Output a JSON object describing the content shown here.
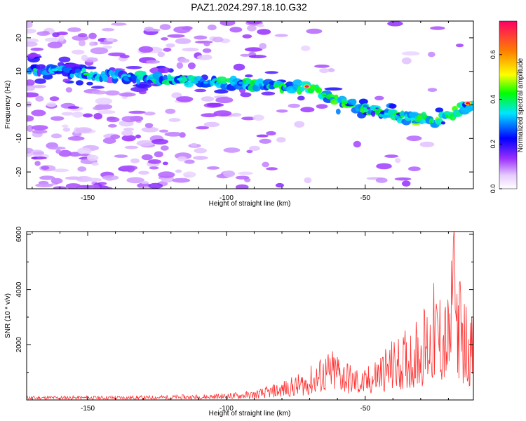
{
  "title": "PAZ1.2024.297.18.10.G32",
  "chart_data": [
    {
      "type": "heatmap",
      "title": "PAZ1.2024.297.18.10.G32",
      "xlabel": "Height of straight line (km)",
      "ylabel": "Frequency (Hz)",
      "xlim": [
        -172,
        -11
      ],
      "ylim": [
        -25,
        25
      ],
      "x_ticks": [
        -150,
        -100,
        -50
      ],
      "y_ticks": [
        -20,
        -10,
        0,
        10,
        20
      ],
      "colorbar": {
        "label": "Normalized spectral amplitude",
        "range": [
          0,
          0.75
        ],
        "ticks": [
          0.0,
          0.2,
          0.4,
          0.6
        ]
      },
      "ridge": {
        "x": [
          -170,
          -160,
          -150,
          -140,
          -130,
          -120,
          -110,
          -100,
          -90,
          -80,
          -70,
          -65,
          -60,
          -55,
          -50,
          -45,
          -40,
          -35,
          -30,
          -25,
          -20,
          -15,
          -11
        ],
        "y": [
          11,
          10,
          9,
          8.5,
          8,
          7.5,
          7,
          6.5,
          6,
          5.5,
          5,
          3,
          1,
          0,
          -1,
          -2,
          -3,
          -4,
          -4,
          -5,
          -3,
          -1,
          0.5
        ]
      },
      "peak": {
        "x": [
          -71,
          -13
        ],
        "y": [
          5.5,
          0.5
        ],
        "amplitude": [
          0.72,
          0.75
        ]
      }
    },
    {
      "type": "line",
      "xlabel": "Height of straight line (km)",
      "ylabel": "SNR (10 * v/v)",
      "xlim": [
        -172,
        -11
      ],
      "ylim": [
        0,
        6100
      ],
      "x_ticks": [
        -150,
        -100,
        -50
      ],
      "y_ticks": [
        2000,
        4000,
        6000
      ],
      "color": "#ff3030",
      "envelope": {
        "x": [
          -172,
          -150,
          -130,
          -110,
          -100,
          -90,
          -85,
          -80,
          -75,
          -70,
          -65,
          -60,
          -55,
          -50,
          -45,
          -40,
          -35,
          -30,
          -25,
          -20,
          -18,
          -15,
          -11
        ],
        "y": [
          150,
          150,
          160,
          200,
          250,
          350,
          500,
          700,
          900,
          1200,
          1700,
          1900,
          1300,
          1100,
          1800,
          2200,
          2600,
          3200,
          4300,
          3800,
          6100,
          4000,
          3000
        ]
      }
    }
  ]
}
